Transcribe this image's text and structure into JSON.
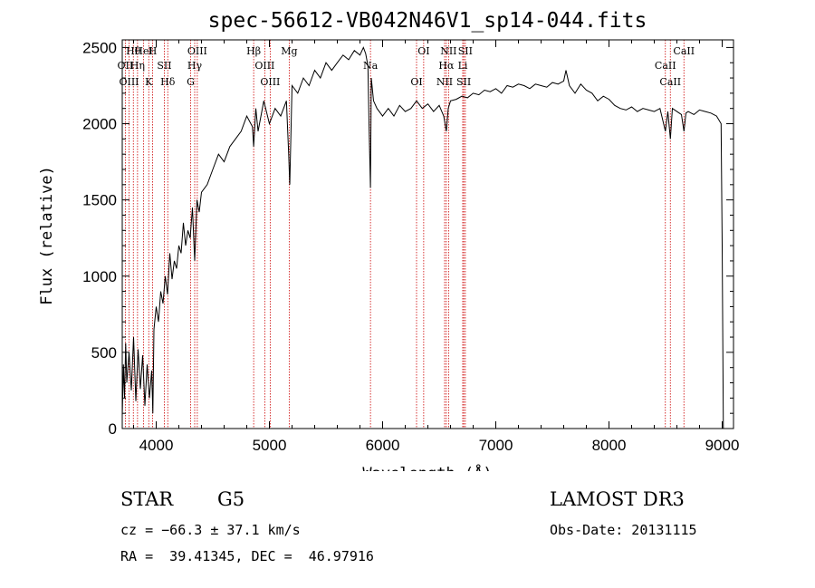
{
  "chart_data": {
    "type": "line",
    "title": "spec-56612-VB042N46V1_sp14-044.fits",
    "xlabel": "Wavelength (Å)",
    "ylabel": "Flux (relative)",
    "xlim": [
      3700,
      9100
    ],
    "ylim": [
      0,
      2550
    ],
    "xticks": [
      4000,
      5000,
      6000,
      7000,
      8000,
      9000
    ],
    "yticks": [
      0,
      500,
      1000,
      1500,
      2000,
      2500
    ],
    "xtick_labels": [
      "4000",
      "5000",
      "6000",
      "7000",
      "8000",
      "9000"
    ],
    "ytick_labels": [
      "0",
      "500",
      "1000",
      "1500",
      "2000",
      "2500"
    ],
    "grid": false,
    "series": [
      {
        "name": "flux",
        "x": [
          3700,
          3710,
          3720,
          3730,
          3740,
          3760,
          3780,
          3800,
          3820,
          3840,
          3860,
          3880,
          3900,
          3920,
          3940,
          3960,
          3970,
          3980,
          4000,
          4020,
          4040,
          4060,
          4080,
          4100,
          4120,
          4140,
          4160,
          4180,
          4200,
          4220,
          4240,
          4260,
          4280,
          4300,
          4320,
          4340,
          4360,
          4380,
          4400,
          4450,
          4500,
          4550,
          4600,
          4650,
          4700,
          4750,
          4800,
          4850,
          4861,
          4880,
          4900,
          4950,
          5000,
          5050,
          5100,
          5150,
          5170,
          5180,
          5200,
          5250,
          5300,
          5350,
          5400,
          5450,
          5500,
          5550,
          5600,
          5650,
          5700,
          5750,
          5800,
          5830,
          5850,
          5870,
          5880,
          5893,
          5900,
          5920,
          5950,
          6000,
          6050,
          6100,
          6150,
          6200,
          6250,
          6300,
          6350,
          6400,
          6450,
          6500,
          6540,
          6563,
          6580,
          6600,
          6650,
          6700,
          6750,
          6800,
          6850,
          6900,
          6950,
          7000,
          7050,
          7100,
          7150,
          7200,
          7250,
          7300,
          7350,
          7400,
          7450,
          7500,
          7550,
          7600,
          7620,
          7650,
          7700,
          7750,
          7800,
          7850,
          7900,
          7950,
          8000,
          8050,
          8100,
          8150,
          8200,
          8250,
          8300,
          8350,
          8400,
          8450,
          8498,
          8520,
          8542,
          8560,
          8600,
          8640,
          8662,
          8680,
          8700,
          8750,
          8800,
          8850,
          8900,
          8950,
          8990,
          9000,
          9010
        ],
        "values": [
          80,
          420,
          200,
          560,
          300,
          500,
          250,
          600,
          180,
          520,
          260,
          480,
          150,
          420,
          200,
          380,
          100,
          650,
          800,
          700,
          900,
          820,
          1000,
          880,
          1150,
          980,
          1100,
          1050,
          1200,
          1150,
          1350,
          1200,
          1300,
          1250,
          1450,
          1100,
          1500,
          1420,
          1550,
          1600,
          1700,
          1800,
          1750,
          1850,
          1900,
          1950,
          2050,
          1980,
          1850,
          2100,
          1950,
          2150,
          2000,
          2100,
          2050,
          2150,
          1800,
          1600,
          2250,
          2200,
          2300,
          2250,
          2350,
          2300,
          2400,
          2350,
          2400,
          2450,
          2420,
          2480,
          2450,
          2500,
          2460,
          2380,
          2000,
          1580,
          2300,
          2150,
          2100,
          2050,
          2100,
          2050,
          2120,
          2080,
          2100,
          2150,
          2100,
          2130,
          2080,
          2120,
          2050,
          1950,
          2100,
          2150,
          2160,
          2180,
          2170,
          2200,
          2190,
          2220,
          2210,
          2230,
          2200,
          2250,
          2240,
          2260,
          2250,
          2230,
          2260,
          2250,
          2240,
          2270,
          2260,
          2280,
          2350,
          2250,
          2200,
          2260,
          2220,
          2200,
          2150,
          2180,
          2160,
          2120,
          2100,
          2090,
          2110,
          2080,
          2100,
          2090,
          2080,
          2100,
          1950,
          2080,
          1900,
          2100,
          2080,
          2060,
          1950,
          2070,
          2080,
          2060,
          2090,
          2080,
          2070,
          2050,
          2000,
          1200,
          0
        ]
      }
    ],
    "lines": [
      {
        "label": "Hθ",
        "x": 3798
      },
      {
        "label": "OII",
        "x": 3727
      },
      {
        "label": "OIII",
        "x": 3760
      },
      {
        "label": "HeI",
        "x": 3889
      },
      {
        "label": "Hη",
        "x": 3835
      },
      {
        "label": "K",
        "x": 3934
      },
      {
        "label": "H",
        "x": 3968
      },
      {
        "label": "SII",
        "x": 4072
      },
      {
        "label": "Hδ",
        "x": 4102
      },
      {
        "label": "OIII",
        "x": 4363
      },
      {
        "label": "Hγ",
        "x": 4340
      },
      {
        "label": "G",
        "x": 4304
      },
      {
        "label": "Hβ",
        "x": 4861
      },
      {
        "label": "OIII",
        "x": 4959
      },
      {
        "label": "OIII",
        "x": 5007
      },
      {
        "label": "Mg",
        "x": 5175
      },
      {
        "label": "Na",
        "x": 5893
      },
      {
        "label": "OI",
        "x": 6300
      },
      {
        "label": "OI",
        "x": 6363
      },
      {
        "label": "Hα",
        "x": 6563
      },
      {
        "label": "NII",
        "x": 6548
      },
      {
        "label": "NII",
        "x": 6583
      },
      {
        "label": "Li",
        "x": 6708
      },
      {
        "label": "SII",
        "x": 6717
      },
      {
        "label": "SII",
        "x": 6731
      },
      {
        "label": "CaII",
        "x": 8498
      },
      {
        "label": "CaII",
        "x": 8542
      },
      {
        "label": "CaII",
        "x": 8662
      }
    ]
  },
  "info": {
    "class_label": "STAR",
    "subclass": "G5",
    "survey": "LAMOST DR3",
    "cz": "cz = −66.3 ± 37.1 km/s",
    "obs_date": "Obs-Date: 20131115",
    "coords": "RA =  39.41345, DEC =  46.97916"
  },
  "colors": {
    "line": "#000000",
    "marker_line": "#cc0000",
    "axis": "#000000"
  }
}
